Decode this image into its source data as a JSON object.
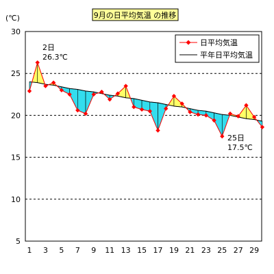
{
  "chart_data": {
    "type": "line",
    "title": "9月の日平均気温 の推移",
    "y_unit": "(℃)",
    "x": [
      1,
      2,
      3,
      4,
      5,
      6,
      7,
      8,
      9,
      10,
      11,
      12,
      13,
      14,
      15,
      16,
      17,
      18,
      19,
      20,
      21,
      22,
      23,
      24,
      25,
      26,
      27,
      28,
      29,
      30
    ],
    "x_tick_labels": [
      "1",
      "3",
      "5",
      "7",
      "9",
      "11",
      "13",
      "15",
      "17",
      "19",
      "21",
      "23",
      "25",
      "27",
      "29"
    ],
    "x_ticks": [
      1,
      3,
      5,
      7,
      9,
      11,
      13,
      15,
      17,
      19,
      21,
      23,
      25,
      27,
      29
    ],
    "ylim": [
      5,
      30
    ],
    "y_ticks": [
      5,
      10,
      15,
      20,
      25,
      30
    ],
    "grid": "horizontal dashed",
    "legend_position": "top-right",
    "series": [
      {
        "name": "日平均気温",
        "color": "#ff0000",
        "marker": "diamond",
        "values": [
          22.9,
          26.3,
          23.5,
          23.9,
          23.0,
          22.5,
          20.6,
          20.2,
          22.5,
          22.8,
          21.9,
          22.6,
          23.5,
          21.0,
          20.7,
          20.5,
          18.2,
          20.8,
          22.3,
          21.4,
          20.4,
          20.1,
          20.0,
          19.4,
          17.5,
          20.2,
          19.9,
          21.2,
          19.8,
          18.6
        ]
      },
      {
        "name": "平年日平均気温",
        "color": "#000000",
        "values": [
          24.0,
          23.9,
          23.7,
          23.6,
          23.4,
          23.2,
          23.1,
          22.9,
          22.8,
          22.6,
          22.4,
          22.3,
          22.1,
          22.0,
          21.8,
          21.6,
          21.5,
          21.3,
          21.1,
          21.0,
          20.8,
          20.6,
          20.5,
          20.3,
          20.1,
          20.0,
          19.8,
          19.6,
          19.5,
          19.3
        ]
      }
    ],
    "fill_above_color": "#ffff66",
    "fill_below_color": "#33ddee",
    "annotations": [
      {
        "day": "2日",
        "value": "26.3℃"
      },
      {
        "day": "25日",
        "value": "17.5℃"
      }
    ]
  }
}
